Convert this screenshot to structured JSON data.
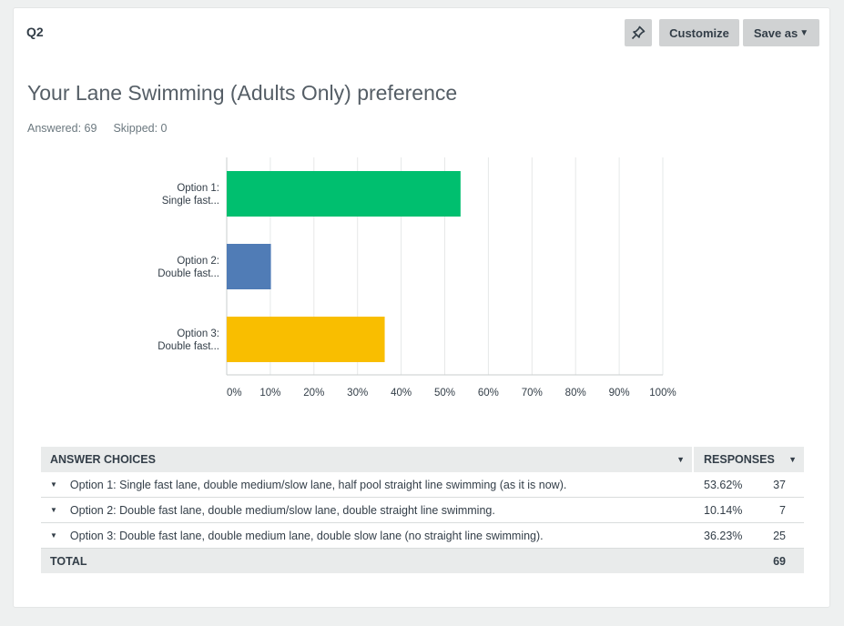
{
  "question": {
    "number": "Q2",
    "title": "Your Lane Swimming (Adults Only) preference"
  },
  "toolbar": {
    "pin_icon": "pin-icon",
    "customize_label": "Customize",
    "saveas_label": "Save as",
    "saveas_caret": "▼"
  },
  "stats": {
    "answered": "Answered: 69",
    "skipped": "Skipped: 0"
  },
  "colors": {
    "option1": "#00bf6f",
    "option2": "#507cb6",
    "option3": "#f9be00",
    "grid": "#e6e8e8",
    "axis": "#c9cdce"
  },
  "chart_data": {
    "type": "bar",
    "orientation": "horizontal",
    "categories": [
      [
        "Option 1:",
        "Single fast..."
      ],
      [
        "Option 2:",
        "Double fast..."
      ],
      [
        "Option 3:",
        "Double fast..."
      ]
    ],
    "values": [
      53.62,
      10.14,
      36.23
    ],
    "xlim": [
      0,
      100
    ],
    "xticks": [
      "0%",
      "10%",
      "20%",
      "30%",
      "40%",
      "50%",
      "60%",
      "70%",
      "80%",
      "90%",
      "100%"
    ],
    "grid": true
  },
  "table": {
    "header_choices": "ANSWER CHOICES",
    "header_responses": "RESPONSES",
    "sort_caret": "▼",
    "row_caret": "▼",
    "rows": [
      {
        "choice": "Option 1: Single fast lane, double medium/slow lane, half pool straight line swimming (as it is now).",
        "percent": "53.62%",
        "count": "37"
      },
      {
        "choice": "Option 2: Double fast lane, double medium/slow lane, double straight line swimming.",
        "percent": "10.14%",
        "count": "7"
      },
      {
        "choice": "Option 3: Double fast lane, double medium lane, double slow lane (no straight line swimming).",
        "percent": "36.23%",
        "count": "25"
      }
    ],
    "total_label": "TOTAL",
    "total_count": "69"
  }
}
